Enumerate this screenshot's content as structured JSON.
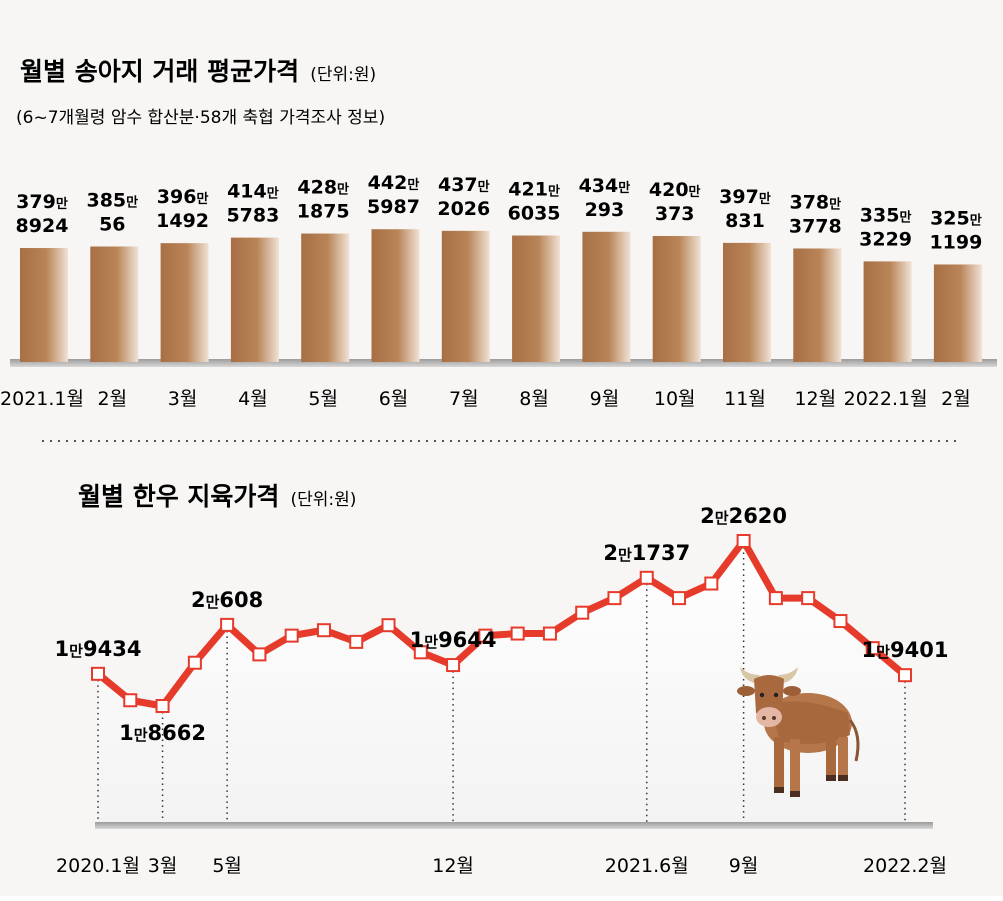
{
  "chart_data": [
    {
      "type": "bar",
      "title": "월별 송아지 거래 평균가격",
      "unit": "(단위:원)",
      "subtitle": "(6~7개월령 암수 합산분·58개 축협 가격조사 정보)",
      "categories": [
        "2021.1월",
        "2월",
        "3월",
        "4월",
        "5월",
        "6월",
        "7월",
        "8월",
        "9월",
        "10월",
        "11월",
        "12월",
        "2022.1월",
        "2월"
      ],
      "values": [
        3798924,
        3850056,
        3961492,
        4145783,
        4281875,
        4425987,
        4372026,
        4216035,
        4340293,
        4200373,
        3970831,
        3783778,
        3353229,
        3251199
      ],
      "labels": [
        {
          "man": "379",
          "rest": "8924"
        },
        {
          "man": "385",
          "rest": "56"
        },
        {
          "man": "396",
          "rest": "1492"
        },
        {
          "man": "414",
          "rest": "5783"
        },
        {
          "man": "428",
          "rest": "1875"
        },
        {
          "man": "442",
          "rest": "5987"
        },
        {
          "man": "437",
          "rest": "2026"
        },
        {
          "man": "421",
          "rest": "6035"
        },
        {
          "man": "434",
          "rest": "293"
        },
        {
          "man": "420",
          "rest": "373"
        },
        {
          "man": "397",
          "rest": "831"
        },
        {
          "man": "378",
          "rest": "3778"
        },
        {
          "man": "335",
          "rest": "3229"
        },
        {
          "man": "325",
          "rest": "1199"
        }
      ],
      "man_unit": "만",
      "color": "#b07a4e"
    },
    {
      "type": "line",
      "title": "월별 한우 지육가격",
      "unit": "(단위:원)",
      "x": [
        "2020.1",
        "2020.2",
        "2020.3",
        "2020.4",
        "2020.5",
        "2020.6",
        "2020.7",
        "2020.8",
        "2020.9",
        "2020.10",
        "2020.11",
        "2020.12",
        "2021.1",
        "2021.2",
        "2021.3",
        "2021.4",
        "2021.5",
        "2021.6",
        "2021.7",
        "2021.8",
        "2021.9",
        "2021.10",
        "2021.11",
        "2021.12",
        "2022.1",
        "2022.2"
      ],
      "values": [
        19434,
        18800,
        18662,
        19700,
        20608,
        19900,
        20350,
        20480,
        20200,
        20600,
        19950,
        19644,
        20350,
        20400,
        20400,
        20900,
        21250,
        21737,
        21250,
        21600,
        22620,
        21250,
        21250,
        20700,
        20050,
        19401
      ],
      "point_labels": [
        {
          "index": 0,
          "man": "1",
          "rest": "9434",
          "pos": "above"
        },
        {
          "index": 2,
          "man": "1",
          "rest": "8662",
          "pos": "below"
        },
        {
          "index": 4,
          "man": "2",
          "rest": "608",
          "pos": "above"
        },
        {
          "index": 11,
          "man": "1",
          "rest": "9644",
          "pos": "above"
        },
        {
          "index": 17,
          "man": "2",
          "rest": "1737",
          "pos": "above"
        },
        {
          "index": 20,
          "man": "2",
          "rest": "2620",
          "pos": "above"
        },
        {
          "index": 25,
          "man": "1",
          "rest": "9401",
          "pos": "above"
        }
      ],
      "man_unit": "만",
      "ticks": [
        {
          "index": 0,
          "label": "2020.1월"
        },
        {
          "index": 2,
          "label": "3월"
        },
        {
          "index": 4,
          "label": "5월"
        },
        {
          "index": 11,
          "label": "12월"
        },
        {
          "index": 17,
          "label": "2021.6월"
        },
        {
          "index": 20,
          "label": "9월"
        },
        {
          "index": 25,
          "label": "2022.2월"
        }
      ],
      "color": "#e63a2b",
      "icon": "cow-icon"
    }
  ]
}
